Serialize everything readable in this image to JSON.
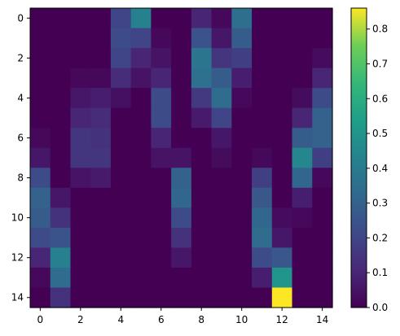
{
  "chart_data": {
    "type": "heatmap",
    "colormap": "viridis",
    "vmin": 0.0,
    "vmax": 0.86,
    "x_ticks": [
      0,
      2,
      4,
      6,
      8,
      10,
      12,
      14
    ],
    "y_ticks": [
      0,
      2,
      4,
      6,
      8,
      10,
      12,
      14
    ],
    "colorbar_ticks": [
      "0.0",
      "0.1",
      "0.2",
      "0.3",
      "0.4",
      "0.5",
      "0.6",
      "0.7",
      "0.8"
    ],
    "rows": 15,
    "cols": 15,
    "values": [
      [
        0.0,
        0.0,
        0.0,
        0.0,
        0.2,
        0.42,
        0.0,
        0.0,
        0.1,
        0.02,
        0.35,
        0.0,
        0.0,
        0.0,
        0.0
      ],
      [
        0.0,
        0.0,
        0.0,
        0.0,
        0.22,
        0.2,
        0.02,
        0.0,
        0.25,
        0.06,
        0.28,
        0.0,
        0.0,
        0.0,
        0.0
      ],
      [
        0.0,
        0.0,
        0.0,
        0.0,
        0.2,
        0.1,
        0.05,
        0.0,
        0.38,
        0.15,
        0.18,
        0.0,
        0.0,
        0.0,
        0.03
      ],
      [
        0.0,
        0.0,
        0.02,
        0.02,
        0.12,
        0.05,
        0.1,
        0.0,
        0.36,
        0.28,
        0.08,
        0.0,
        0.0,
        0.0,
        0.1
      ],
      [
        0.0,
        0.0,
        0.06,
        0.08,
        0.04,
        0.0,
        0.22,
        0.0,
        0.16,
        0.34,
        0.02,
        0.0,
        0.0,
        0.03,
        0.22
      ],
      [
        0.0,
        0.0,
        0.1,
        0.12,
        0.0,
        0.0,
        0.22,
        0.0,
        0.07,
        0.2,
        0.0,
        0.0,
        0.0,
        0.1,
        0.3
      ],
      [
        0.02,
        0.0,
        0.15,
        0.14,
        0.0,
        0.0,
        0.1,
        0.0,
        0.0,
        0.06,
        0.0,
        0.0,
        0.0,
        0.28,
        0.3
      ],
      [
        0.06,
        0.0,
        0.15,
        0.15,
        0.0,
        0.0,
        0.05,
        0.05,
        0.0,
        0.03,
        0.0,
        0.02,
        0.0,
        0.45,
        0.18
      ],
      [
        0.22,
        0.0,
        0.05,
        0.07,
        0.0,
        0.0,
        0.0,
        0.3,
        0.0,
        0.0,
        0.0,
        0.18,
        0.0,
        0.32,
        0.02
      ],
      [
        0.3,
        0.06,
        0.0,
        0.0,
        0.0,
        0.0,
        0.0,
        0.32,
        0.0,
        0.0,
        0.0,
        0.26,
        0.0,
        0.08,
        0.0
      ],
      [
        0.28,
        0.14,
        0.0,
        0.0,
        0.0,
        0.0,
        0.0,
        0.22,
        0.0,
        0.0,
        0.0,
        0.32,
        0.03,
        0.02,
        0.0
      ],
      [
        0.22,
        0.25,
        0.0,
        0.0,
        0.0,
        0.0,
        0.0,
        0.14,
        0.0,
        0.0,
        0.0,
        0.34,
        0.06,
        0.0,
        0.0
      ],
      [
        0.1,
        0.42,
        0.0,
        0.0,
        0.0,
        0.0,
        0.0,
        0.06,
        0.0,
        0.0,
        0.0,
        0.22,
        0.26,
        0.0,
        0.0
      ],
      [
        0.02,
        0.34,
        0.0,
        0.0,
        0.0,
        0.0,
        0.0,
        0.0,
        0.0,
        0.0,
        0.0,
        0.08,
        0.5,
        0.0,
        0.0
      ],
      [
        0.0,
        0.14,
        0.0,
        0.0,
        0.0,
        0.0,
        0.0,
        0.0,
        0.0,
        0.0,
        0.0,
        0.0,
        0.86,
        0.0,
        0.0
      ]
    ]
  }
}
